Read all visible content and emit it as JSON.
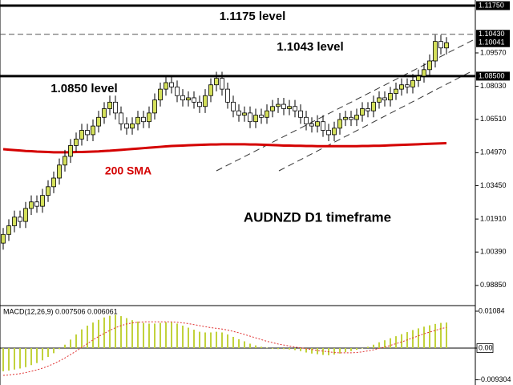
{
  "chart_data": [
    {
      "type": "candlestick",
      "title": "AUDNZD D1 timeframe",
      "up_color": "#d4e05a",
      "down_color": "#ffffff",
      "outline_color": "#000000",
      "open": [
        1.008,
        1.012,
        1.016,
        1.02,
        1.018,
        1.024,
        1.027,
        1.025,
        1.03,
        1.034,
        1.038,
        1.044,
        1.048,
        1.053,
        1.056,
        1.06,
        1.058,
        1.062,
        1.066,
        1.07,
        1.073,
        1.068,
        1.063,
        1.061,
        1.063,
        1.066,
        1.064,
        1.068,
        1.074,
        1.079,
        1.082,
        1.08,
        1.076,
        1.074,
        1.075,
        1.073,
        1.071,
        1.076,
        1.081,
        1.084,
        1.079,
        1.073,
        1.069,
        1.067,
        1.068,
        1.064,
        1.067,
        1.066,
        1.069,
        1.071,
        1.072,
        1.07,
        1.071,
        1.069,
        1.066,
        1.063,
        1.062,
        1.064,
        1.06,
        1.058,
        1.061,
        1.065,
        1.066,
        1.065,
        1.067,
        1.07,
        1.069,
        1.073,
        1.075,
        1.074,
        1.077,
        1.079,
        1.081,
        1.08,
        1.083,
        1.085,
        1.088,
        1.092,
        1.101,
        1.098
      ],
      "high": [
        1.015,
        1.019,
        1.023,
        1.023,
        1.027,
        1.03,
        1.03,
        1.033,
        1.037,
        1.041,
        1.047,
        1.051,
        1.056,
        1.059,
        1.063,
        1.063,
        1.065,
        1.069,
        1.073,
        1.076,
        1.076,
        1.071,
        1.066,
        1.066,
        1.069,
        1.069,
        1.071,
        1.077,
        1.082,
        1.085,
        1.085,
        1.083,
        1.079,
        1.078,
        1.078,
        1.076,
        1.079,
        1.084,
        1.087,
        1.087,
        1.082,
        1.076,
        1.072,
        1.071,
        1.071,
        1.07,
        1.07,
        1.072,
        1.074,
        1.075,
        1.075,
        1.074,
        1.074,
        1.072,
        1.069,
        1.066,
        1.067,
        1.067,
        1.063,
        1.064,
        1.068,
        1.069,
        1.069,
        1.07,
        1.073,
        1.073,
        1.076,
        1.078,
        1.078,
        1.08,
        1.082,
        1.084,
        1.084,
        1.086,
        1.088,
        1.091,
        1.095,
        1.104,
        1.104,
        1.103
      ],
      "low": [
        1.005,
        1.009,
        1.013,
        1.015,
        1.015,
        1.021,
        1.022,
        1.022,
        1.027,
        1.031,
        1.035,
        1.041,
        1.045,
        1.05,
        1.053,
        1.055,
        1.055,
        1.059,
        1.063,
        1.067,
        1.065,
        1.06,
        1.058,
        1.058,
        1.06,
        1.061,
        1.061,
        1.065,
        1.071,
        1.076,
        1.077,
        1.073,
        1.071,
        1.071,
        1.07,
        1.068,
        1.068,
        1.073,
        1.078,
        1.076,
        1.07,
        1.066,
        1.064,
        1.064,
        1.061,
        1.061,
        1.063,
        1.063,
        1.066,
        1.068,
        1.067,
        1.067,
        1.066,
        1.063,
        1.06,
        1.059,
        1.059,
        1.057,
        1.055,
        1.055,
        1.058,
        1.062,
        1.062,
        1.062,
        1.064,
        1.066,
        1.066,
        1.07,
        1.071,
        1.071,
        1.074,
        1.076,
        1.077,
        1.077,
        1.08,
        1.082,
        1.085,
        1.089,
        1.095,
        1.095
      ],
      "close": [
        1.012,
        1.016,
        1.02,
        1.018,
        1.024,
        1.027,
        1.025,
        1.03,
        1.034,
        1.038,
        1.044,
        1.048,
        1.053,
        1.056,
        1.06,
        1.058,
        1.062,
        1.066,
        1.07,
        1.073,
        1.068,
        1.063,
        1.061,
        1.063,
        1.066,
        1.064,
        1.068,
        1.074,
        1.079,
        1.082,
        1.08,
        1.076,
        1.074,
        1.075,
        1.073,
        1.071,
        1.076,
        1.081,
        1.084,
        1.079,
        1.073,
        1.069,
        1.067,
        1.068,
        1.064,
        1.067,
        1.066,
        1.069,
        1.071,
        1.072,
        1.07,
        1.071,
        1.069,
        1.066,
        1.063,
        1.062,
        1.064,
        1.06,
        1.058,
        1.061,
        1.065,
        1.066,
        1.065,
        1.067,
        1.07,
        1.069,
        1.073,
        1.075,
        1.074,
        1.077,
        1.079,
        1.081,
        1.08,
        1.083,
        1.085,
        1.088,
        1.092,
        1.101,
        1.098,
        1.1004
      ],
      "overlays": [
        {
          "name": "200 SMA",
          "color": "#d40000",
          "values": [
            1.0513,
            1.0511,
            1.0509,
            1.0507,
            1.0505,
            1.0504,
            1.0502,
            1.0501,
            1.05,
            1.0499,
            1.0499,
            1.0499,
            1.0499,
            1.05,
            1.05,
            1.0501,
            1.0502,
            1.0503,
            1.0505,
            1.0506,
            1.0508,
            1.051,
            1.0512,
            1.0514,
            1.0516,
            1.0518,
            1.052,
            1.0522,
            1.0524,
            1.0526,
            1.0528,
            1.0529,
            1.053,
            1.0531,
            1.0532,
            1.0533,
            1.0534,
            1.0535,
            1.0535,
            1.0536,
            1.0536,
            1.0536,
            1.0536,
            1.0536,
            1.0535,
            1.0535,
            1.0534,
            1.0533,
            1.0532,
            1.0531,
            1.053,
            1.053,
            1.0529,
            1.0529,
            1.0528,
            1.0528,
            1.0527,
            1.0527,
            1.0527,
            1.0527,
            1.0527,
            1.0527,
            1.0527,
            1.0527,
            1.0528,
            1.0528,
            1.0529,
            1.0529,
            1.053,
            1.0531,
            1.0532,
            1.0533,
            1.0534,
            1.0535,
            1.0536,
            1.0537,
            1.0538,
            1.0539,
            1.054,
            1.0541
          ]
        }
      ],
      "levels": [
        {
          "value": 1.1175,
          "label": "1.1175 level",
          "style": "solid"
        },
        {
          "value": 1.1043,
          "label": "1.1043 level",
          "style": "dashed"
        },
        {
          "value": 1.085,
          "label": "1.0850 level",
          "style": "solid"
        }
      ],
      "price_labels": [
        {
          "value": 1.1175,
          "label": "1.11750"
        },
        {
          "value": 1.1043,
          "label": "1.10430"
        },
        {
          "value": 1.10041,
          "label": "1.10041"
        },
        {
          "value": 1.085,
          "label": "1.08500"
        }
      ],
      "ylim": [
        0.9792,
        1.1201
      ],
      "yticks": [
        {
          "value": 1.0957,
          "label": "1.09570"
        },
        {
          "value": 1.0803,
          "label": "1.08030"
        },
        {
          "value": 1.0651,
          "label": "1.06510"
        },
        {
          "value": 1.0497,
          "label": "1.04970"
        },
        {
          "value": 1.0345,
          "label": "1.03450"
        },
        {
          "value": 1.0191,
          "label": "1.01910"
        },
        {
          "value": 1.0039,
          "label": "1.00390"
        },
        {
          "value": 0.9885,
          "label": "0.98850"
        }
      ]
    },
    {
      "type": "macd",
      "title": "MACD(12,26,9) 0.007506 0.006061",
      "series": [
        {
          "style": "bar",
          "color": "#c2d23c",
          "values": [
            -0.0068,
            -0.0066,
            -0.0063,
            -0.006,
            -0.0056,
            -0.005,
            -0.0044,
            -0.0036,
            -0.0026,
            -0.0015,
            -0.0003,
            0.001,
            0.0025,
            0.004,
            0.0055,
            0.0066,
            0.0075,
            0.0083,
            0.009,
            0.0095,
            0.0098,
            0.0094,
            0.0088,
            0.0082,
            0.0078,
            0.0074,
            0.0072,
            0.0072,
            0.0074,
            0.0076,
            0.0076,
            0.0072,
            0.0066,
            0.006,
            0.0054,
            0.0048,
            0.0046,
            0.0046,
            0.0048,
            0.0046,
            0.004,
            0.0033,
            0.0026,
            0.002,
            0.0013,
            0.0008,
            0.0004,
            0.0001,
            -0.0002,
            -0.0003,
            -0.0003,
            -0.0004,
            -0.0006,
            -0.0009,
            -0.0013,
            -0.0016,
            -0.0018,
            -0.002,
            -0.0021,
            -0.0019,
            -0.0016,
            -0.0012,
            -0.0009,
            -0.0005,
            -0.0001,
            0.0004,
            0.001,
            0.0017,
            0.0023,
            0.0029,
            0.0035,
            0.0041,
            0.0047,
            0.0053,
            0.0058,
            0.0063,
            0.0067,
            0.0071,
            0.0074,
            0.007506
          ]
        },
        {
          "style": "dotted",
          "color": "#e03030",
          "values": [
            -0.008,
            -0.0079,
            -0.0077,
            -0.0075,
            -0.0072,
            -0.0068,
            -0.0064,
            -0.0059,
            -0.0053,
            -0.0046,
            -0.0038,
            -0.0029,
            -0.0019,
            -0.0009,
            0.0002,
            0.0013,
            0.0024,
            0.0034,
            0.0043,
            0.0052,
            0.006,
            0.0066,
            0.0071,
            0.0074,
            0.0076,
            0.0077,
            0.0077,
            0.0077,
            0.0077,
            0.0077,
            0.0077,
            0.0076,
            0.0074,
            0.0072,
            0.0069,
            0.0066,
            0.0063,
            0.006,
            0.0058,
            0.0056,
            0.0053,
            0.0049,
            0.0045,
            0.004,
            0.0035,
            0.003,
            0.0025,
            0.002,
            0.0016,
            0.0012,
            0.0009,
            0.0006,
            0.0003,
            0.0001,
            -0.0002,
            -0.0004,
            -0.0007,
            -0.0009,
            -0.0011,
            -0.0013,
            -0.0014,
            -0.0014,
            -0.0014,
            -0.0013,
            -0.0011,
            -0.0008,
            -0.0005,
            -0.0001,
            0.0003,
            0.0008,
            0.0013,
            0.0018,
            0.0024,
            0.003,
            0.0036,
            0.0042,
            0.0047,
            0.0052,
            0.0057,
            0.006061
          ]
        }
      ],
      "ylim": [
        -0.01084,
        0.01225
      ],
      "yticks": [
        0.01084,
        {
          "value": 0,
          "label": "0.00"
        },
        -0.009304
      ]
    }
  ]
}
